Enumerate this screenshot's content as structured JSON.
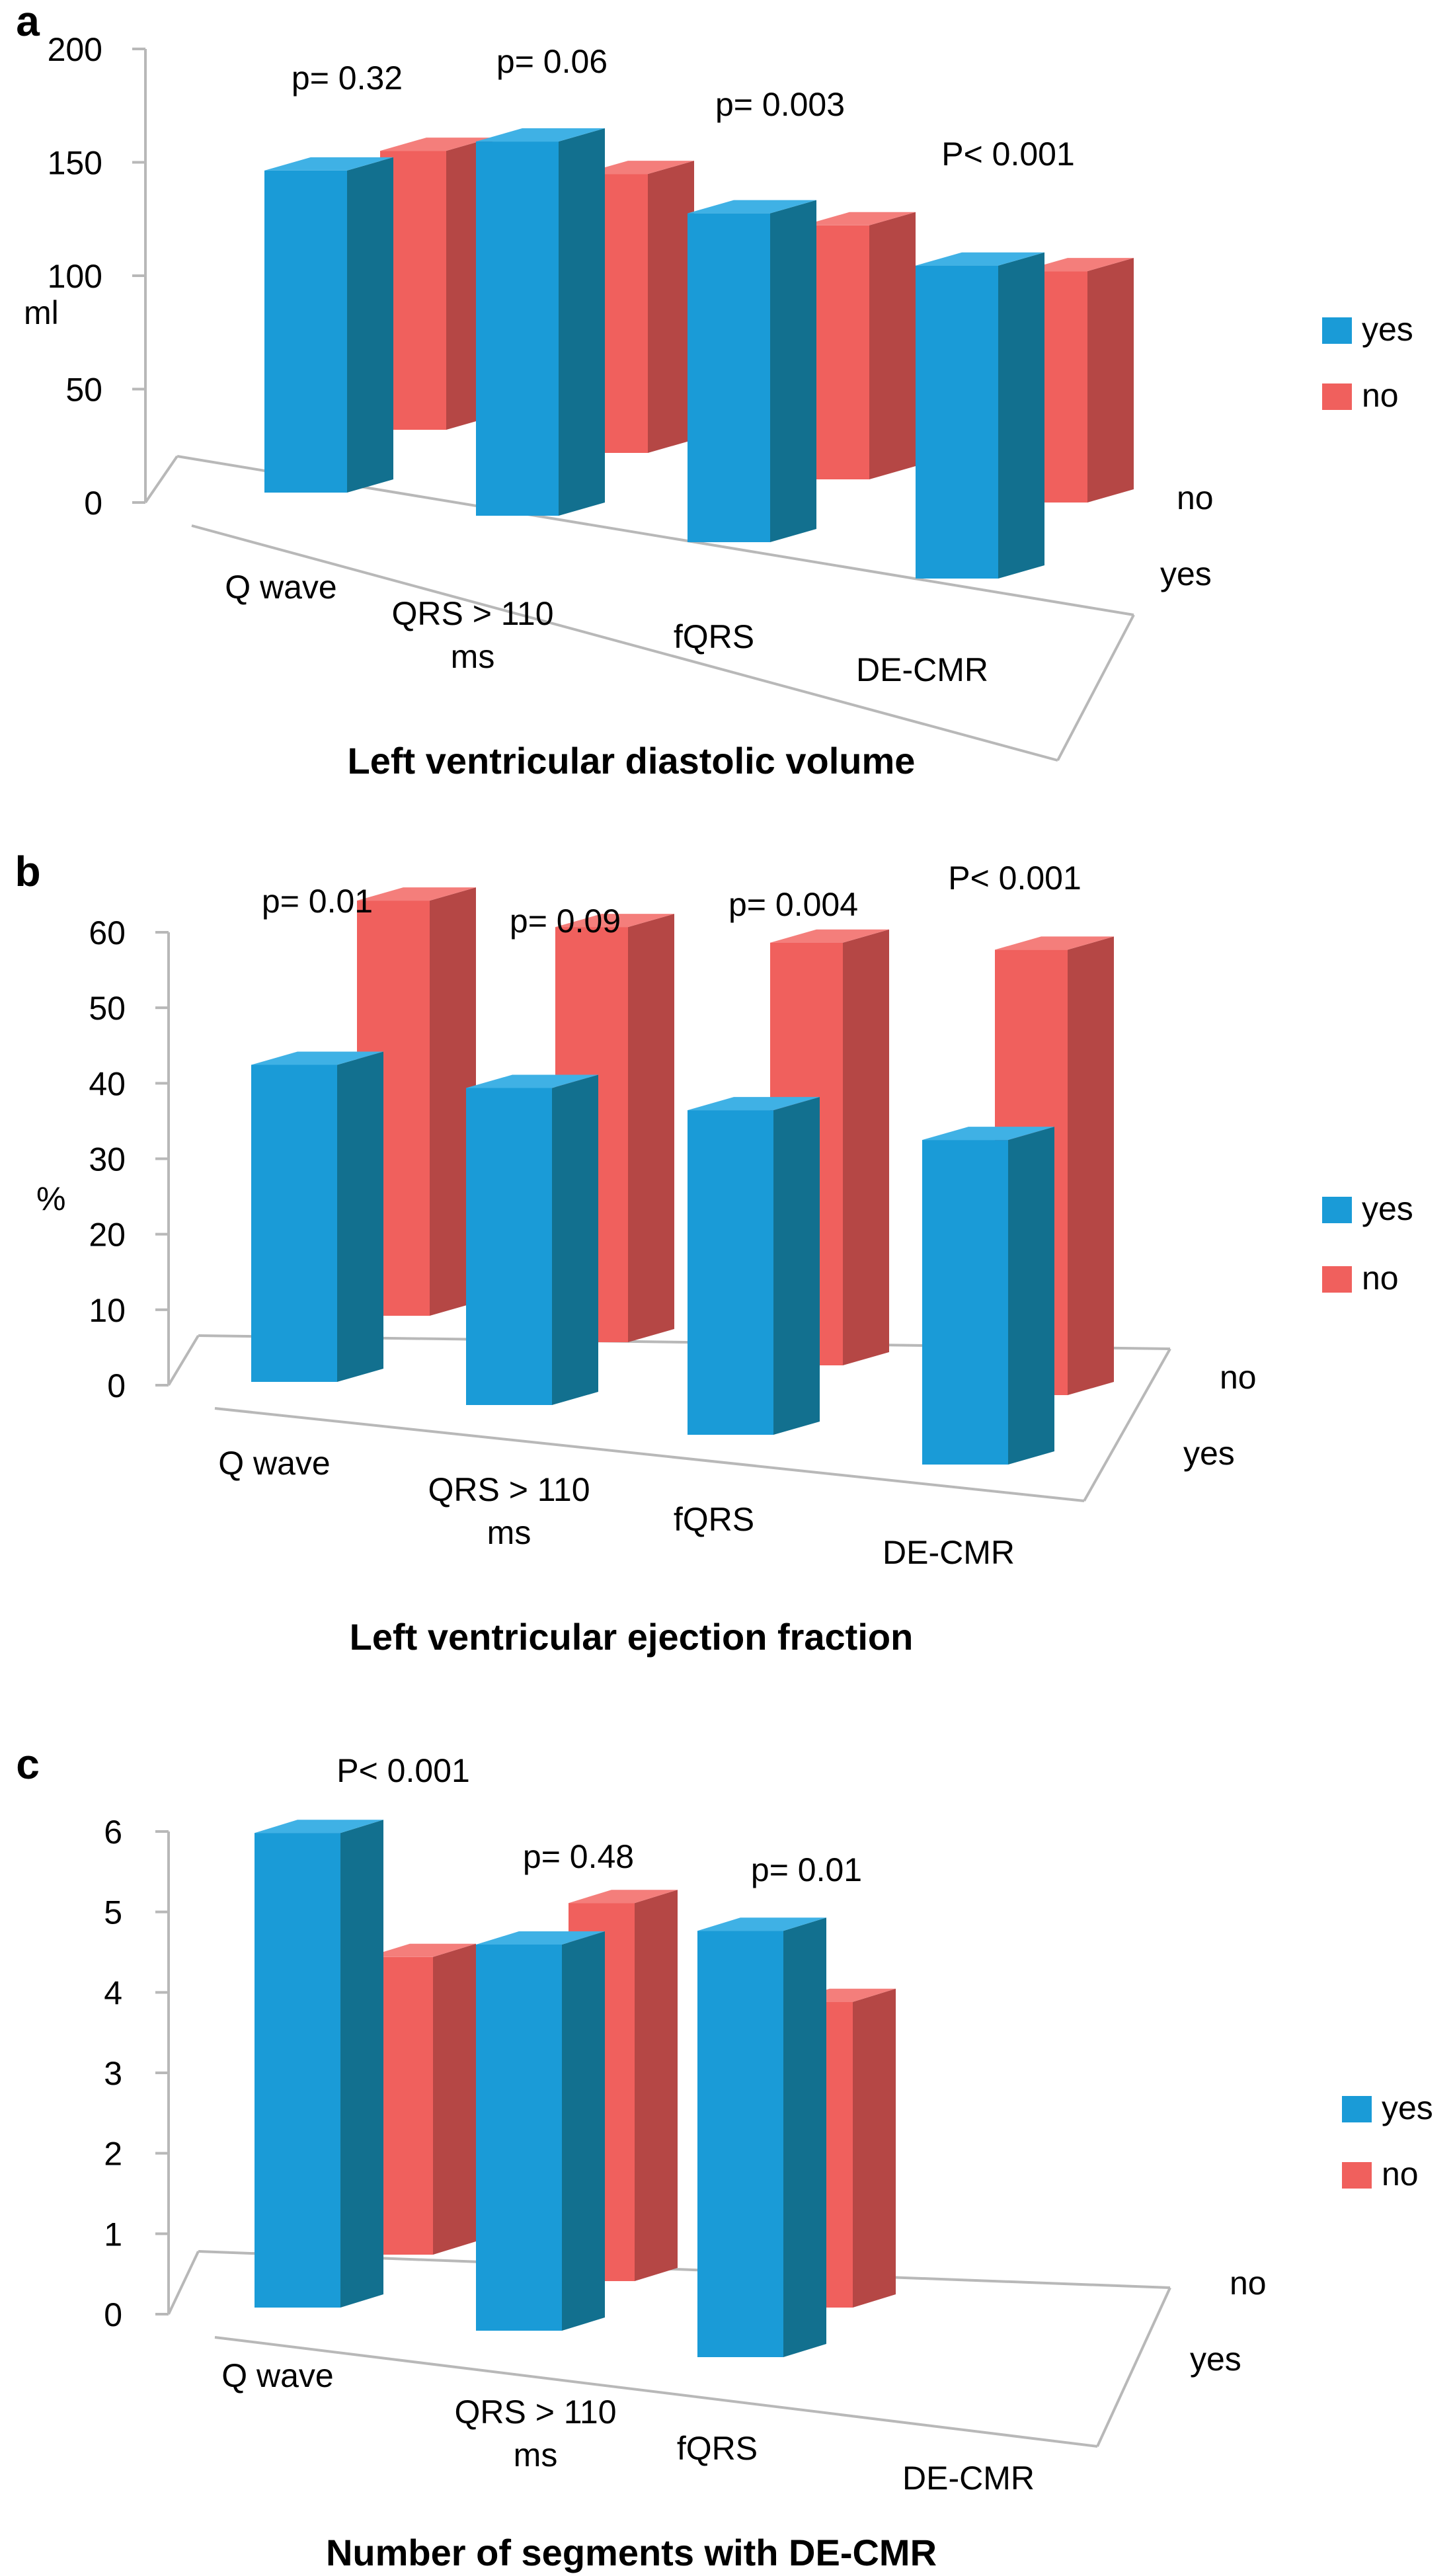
{
  "legend": {
    "yes": "yes",
    "no": "no"
  },
  "depth_labels": [
    "no",
    "yes"
  ],
  "colors": {
    "yes_front": "#1A9BD7",
    "yes_side": "#12708F",
    "yes_top": "#3FB1E5",
    "no_front": "#F0605D",
    "no_side": "#B54745",
    "no_top": "#F47E7B",
    "axis": "#B8B8B8"
  },
  "chart_data": [
    {
      "type": "bar",
      "panel_label": "a",
      "title": "Left ventricular diastolic volume",
      "ylabel": "ml",
      "ylim": [
        0,
        200
      ],
      "yticks": [
        "0",
        "50",
        "100",
        "150",
        "200"
      ],
      "categories": [
        "Q wave",
        [
          "QRS > 110",
          "ms"
        ],
        "fQRS",
        "DE-CMR"
      ],
      "series": [
        {
          "name": "yes",
          "values": [
            142,
            165,
            145,
            138
          ]
        },
        {
          "name": "no",
          "values": [
            123,
            123,
            112,
            102
          ]
        }
      ],
      "annotations": [
        "p= 0.32",
        "p= 0.06",
        "p= 0.003",
        "P< 0.001"
      ]
    },
    {
      "type": "bar",
      "panel_label": "b",
      "title": "Left ventricular ejection fraction",
      "ylabel": "%",
      "ylim": [
        0,
        60
      ],
      "yticks": [
        "0",
        "10",
        "20",
        "30",
        "40",
        "50",
        "60"
      ],
      "categories": [
        "Q wave",
        [
          "QRS > 110",
          "ms"
        ],
        "fQRS",
        "DE-CMR"
      ],
      "series": [
        {
          "name": "yes",
          "values": [
            42,
            42,
            43,
            43
          ]
        },
        {
          "name": "no",
          "values": [
            55,
            55,
            56,
            59
          ]
        }
      ],
      "annotations": [
        "p= 0.01",
        "p= 0.09",
        "p= 0.004",
        "P< 0.001"
      ]
    },
    {
      "type": "bar",
      "panel_label": "c",
      "title": "Number of segments with DE-CMR",
      "ylabel": "",
      "ylim": [
        0,
        6
      ],
      "yticks": [
        "0",
        "1",
        "2",
        "3",
        "4",
        "5",
        "6"
      ],
      "categories": [
        "Q wave",
        [
          "QRS > 110",
          "ms"
        ],
        "fQRS",
        "DE-CMR"
      ],
      "series": [
        {
          "name": "yes",
          "values": [
            5.9,
            4.8,
            5.3,
            null
          ]
        },
        {
          "name": "no",
          "values": [
            3.7,
            4.7,
            3.8,
            null
          ]
        }
      ],
      "annotations": [
        "P< 0.001",
        "p= 0.48",
        "p= 0.01",
        ""
      ]
    }
  ]
}
